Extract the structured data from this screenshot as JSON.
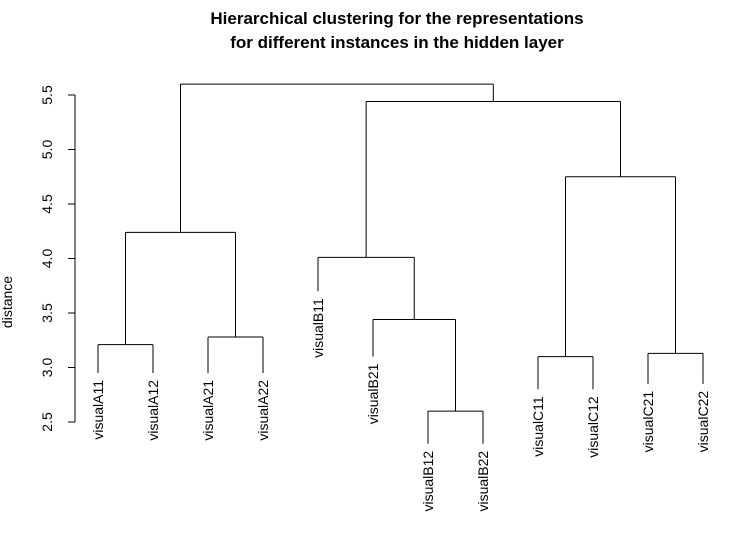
{
  "chart_data": {
    "type": "dendrogram",
    "title_lines": [
      "Hierarchical clustering for the representations",
      "for different instances in the hidden layer"
    ],
    "ylabel": "distance",
    "xlabel": "",
    "ylim": [
      2.5,
      5.6
    ],
    "yticks": [
      2.5,
      3.0,
      3.5,
      4.0,
      4.5,
      5.0,
      5.5
    ],
    "ytick_labels": [
      "2.5",
      "3.0",
      "3.5",
      "4.0",
      "4.5",
      "5.0",
      "5.5"
    ],
    "grid": false,
    "leaves": [
      "visualA11",
      "visualA12",
      "visualA21",
      "visualA22",
      "visualB11",
      "visualB21",
      "visualB12",
      "visualB22",
      "visualC11",
      "visualC12",
      "visualC21",
      "visualC22"
    ],
    "leaf_heights": [
      2.95,
      2.95,
      2.95,
      2.95,
      3.7,
      3.1,
      2.3,
      2.3,
      2.8,
      2.8,
      2.85,
      2.85
    ],
    "merges": [
      {
        "left": "visualA11",
        "right": "visualA12",
        "height": 3.21
      },
      {
        "left": "visualA21",
        "right": "visualA22",
        "height": 3.28
      },
      {
        "left": "visualB12",
        "right": "visualB22",
        "height": 2.6
      },
      {
        "left": "visualC11",
        "right": "visualC12",
        "height": 3.1
      },
      {
        "left": "visualC21",
        "right": "visualC22",
        "height": 3.13
      },
      {
        "left": "visualB21",
        "right": "B12-B22",
        "height": 3.44
      },
      {
        "left": "visualB11",
        "right": "B21-B12-B22",
        "height": 4.01
      },
      {
        "left": "A11-A12",
        "right": "A21-A22",
        "height": 4.24
      },
      {
        "left": "C11-C12",
        "right": "C21-C22",
        "height": 4.75
      },
      {
        "left": "B-group",
        "right": "C-group",
        "height": 5.44
      },
      {
        "left": "A-group",
        "right": "BC-group",
        "height": 5.6
      }
    ]
  }
}
